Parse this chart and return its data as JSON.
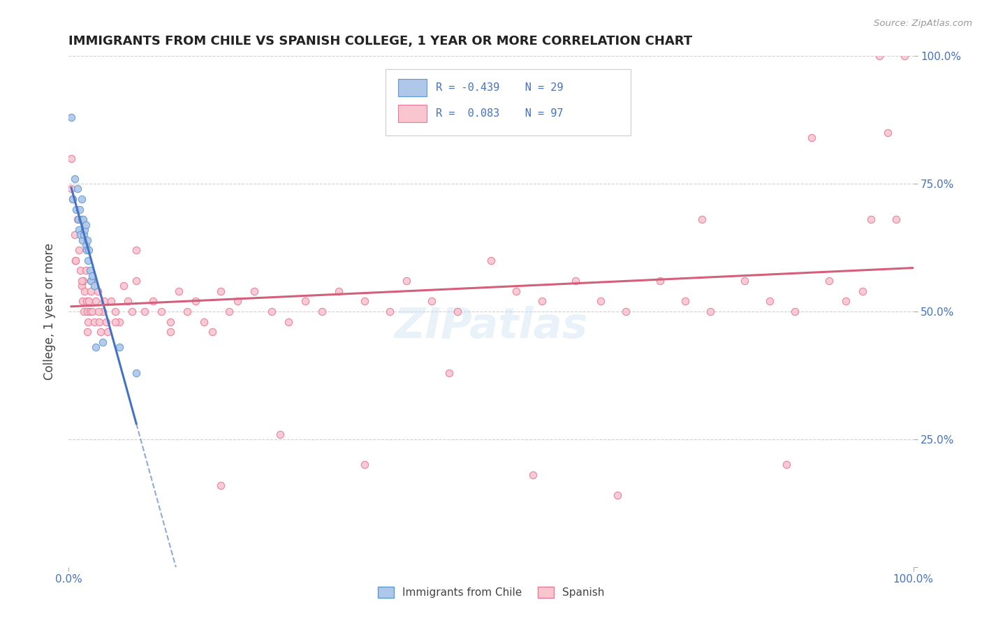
{
  "title": "IMMIGRANTS FROM CHILE VS SPANISH COLLEGE, 1 YEAR OR MORE CORRELATION CHART",
  "source": "Source: ZipAtlas.com",
  "ylabel": "College, 1 year or more",
  "watermark": "ZIPatlas",
  "chile_color": "#aec6e8",
  "chile_edge": "#5b9bd5",
  "spanish_color": "#f9c6d0",
  "spanish_edge": "#e87898",
  "trend_chile_color": "#4472c4",
  "trend_spanish_color": "#d45f7a",
  "background_color": "#ffffff",
  "grid_color": "#d0d0d0",
  "chile_points_x": [
    0.003,
    0.005,
    0.007,
    0.009,
    0.01,
    0.011,
    0.012,
    0.013,
    0.014,
    0.015,
    0.015,
    0.016,
    0.017,
    0.018,
    0.019,
    0.02,
    0.02,
    0.021,
    0.022,
    0.023,
    0.024,
    0.025,
    0.026,
    0.028,
    0.03,
    0.032,
    0.04,
    0.06,
    0.08
  ],
  "chile_points_y": [
    0.88,
    0.72,
    0.76,
    0.7,
    0.74,
    0.68,
    0.66,
    0.7,
    0.65,
    0.68,
    0.72,
    0.64,
    0.68,
    0.65,
    0.66,
    0.63,
    0.67,
    0.62,
    0.64,
    0.6,
    0.62,
    0.58,
    0.56,
    0.57,
    0.55,
    0.43,
    0.44,
    0.43,
    0.38
  ],
  "spanish_points_x": [
    0.003,
    0.005,
    0.007,
    0.008,
    0.01,
    0.012,
    0.014,
    0.015,
    0.016,
    0.017,
    0.018,
    0.019,
    0.02,
    0.021,
    0.022,
    0.023,
    0.024,
    0.025,
    0.026,
    0.027,
    0.028,
    0.03,
    0.032,
    0.034,
    0.036,
    0.038,
    0.04,
    0.042,
    0.044,
    0.046,
    0.05,
    0.055,
    0.06,
    0.065,
    0.07,
    0.075,
    0.08,
    0.09,
    0.1,
    0.11,
    0.12,
    0.13,
    0.14,
    0.15,
    0.16,
    0.17,
    0.18,
    0.19,
    0.2,
    0.22,
    0.24,
    0.26,
    0.28,
    0.3,
    0.32,
    0.35,
    0.38,
    0.4,
    0.43,
    0.46,
    0.5,
    0.53,
    0.56,
    0.6,
    0.63,
    0.66,
    0.7,
    0.73,
    0.76,
    0.8,
    0.83,
    0.86,
    0.88,
    0.9,
    0.92,
    0.94,
    0.96,
    0.97,
    0.98,
    0.99,
    0.003,
    0.008,
    0.015,
    0.022,
    0.035,
    0.055,
    0.08,
    0.12,
    0.18,
    0.25,
    0.35,
    0.45,
    0.55,
    0.65,
    0.75,
    0.85,
    0.95
  ],
  "spanish_points_y": [
    0.8,
    0.72,
    0.65,
    0.6,
    0.68,
    0.62,
    0.58,
    0.55,
    0.52,
    0.56,
    0.5,
    0.54,
    0.58,
    0.52,
    0.5,
    0.48,
    0.52,
    0.5,
    0.54,
    0.56,
    0.5,
    0.48,
    0.52,
    0.54,
    0.48,
    0.46,
    0.5,
    0.52,
    0.48,
    0.46,
    0.52,
    0.5,
    0.48,
    0.55,
    0.52,
    0.5,
    0.56,
    0.5,
    0.52,
    0.5,
    0.48,
    0.54,
    0.5,
    0.52,
    0.48,
    0.46,
    0.54,
    0.5,
    0.52,
    0.54,
    0.5,
    0.48,
    0.52,
    0.5,
    0.54,
    0.52,
    0.5,
    0.56,
    0.52,
    0.5,
    0.6,
    0.54,
    0.52,
    0.56,
    0.52,
    0.5,
    0.56,
    0.52,
    0.5,
    0.56,
    0.52,
    0.5,
    0.84,
    0.56,
    0.52,
    0.54,
    1.0,
    0.85,
    0.68,
    1.0,
    0.74,
    0.6,
    0.56,
    0.46,
    0.5,
    0.48,
    0.62,
    0.46,
    0.16,
    0.26,
    0.2,
    0.38,
    0.18,
    0.14,
    0.68,
    0.2,
    0.68
  ]
}
